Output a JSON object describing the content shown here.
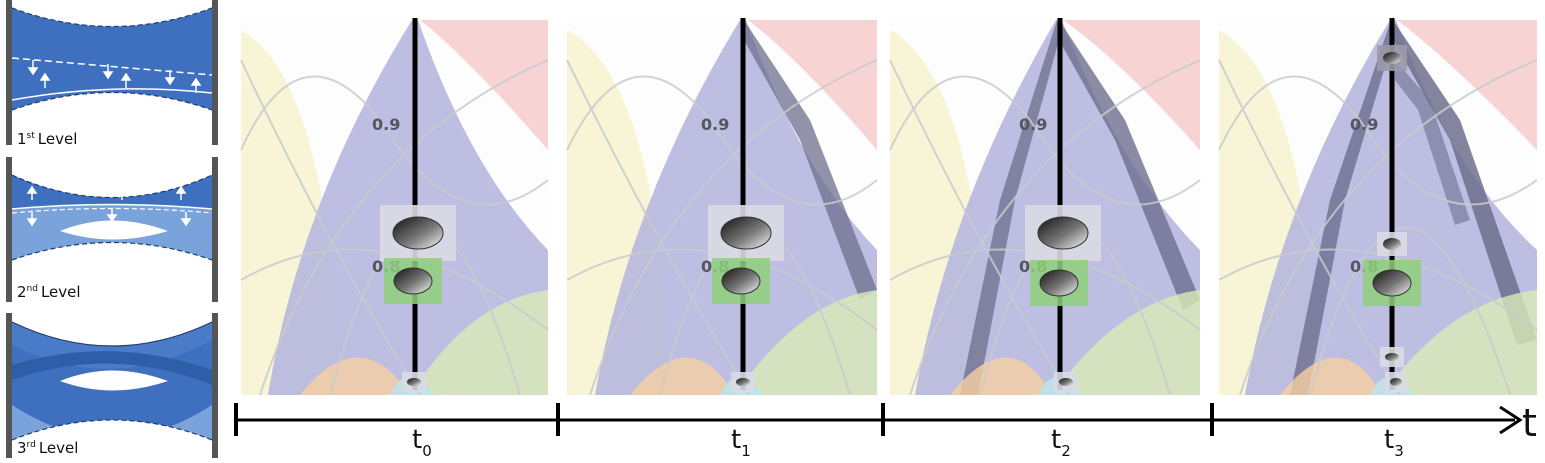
{
  "levels": [
    {
      "number": "1",
      "suffix": "st",
      "word": "Level"
    },
    {
      "number": "2",
      "suffix": "nd",
      "word": "Level"
    },
    {
      "number": "3",
      "suffix": "rd",
      "word": "Level"
    }
  ],
  "panels": [
    {
      "step": "t0",
      "label_high": "0.9",
      "label_low": "0.8"
    },
    {
      "step": "t1",
      "label_high": "0.9",
      "label_low": "0.8"
    },
    {
      "step": "t2",
      "label_high": "0.9",
      "label_low": "0.8"
    },
    {
      "step": "t3",
      "label_high": "0.9",
      "label_low": "0.8"
    }
  ],
  "timeline": {
    "ticks": [
      {
        "base": "t",
        "sub": "0"
      },
      {
        "base": "t",
        "sub": "1"
      },
      {
        "base": "t",
        "sub": "2"
      },
      {
        "base": "t",
        "sub": "3"
      }
    ],
    "end_label": "t"
  },
  "colors": {
    "level_blue_dark": "#3f6fbf",
    "level_blue_light": "#7aa3dc",
    "band_purple": "#b3b3de",
    "band_dark": "#6e6e8e",
    "band_orange": "#f6cfa0",
    "band_green": "#d9ebb7",
    "band_cyan": "#bfe3ea",
    "band_pink": "#f4a9a9",
    "band_yellow": "#f3efb4",
    "thumb_green": "#8fd07a",
    "thumb_gray": "#d9dae3"
  }
}
